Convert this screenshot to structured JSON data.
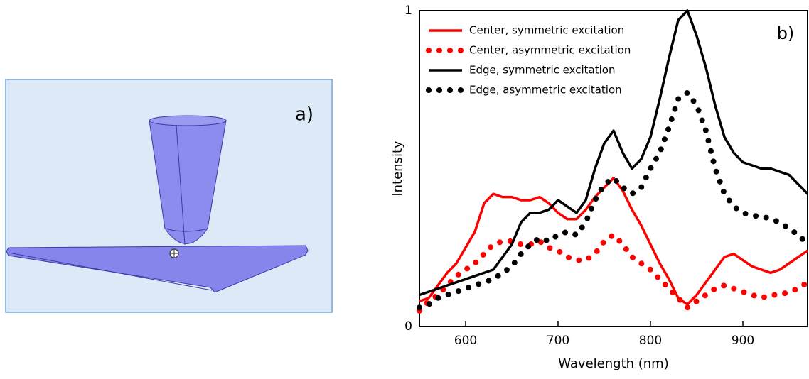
{
  "panel_a": {
    "label": "a)"
  },
  "chart_data": {
    "type": "line",
    "annotation": "b)",
    "xlabel": "Wavelength (nm)",
    "ylabel": "Intensity",
    "xlim": [
      550,
      970
    ],
    "xticks": [
      600,
      700,
      800,
      900
    ],
    "ylim": [
      0,
      1
    ],
    "yticks": [
      0,
      1
    ],
    "legend": "upper left",
    "x": [
      550,
      560,
      570,
      580,
      590,
      600,
      610,
      620,
      630,
      640,
      650,
      660,
      670,
      680,
      690,
      700,
      710,
      720,
      730,
      740,
      750,
      760,
      770,
      780,
      790,
      800,
      810,
      820,
      830,
      840,
      850,
      860,
      870,
      880,
      890,
      900,
      910,
      920,
      930,
      940,
      950,
      960,
      970
    ],
    "series": [
      {
        "name": "Center, symmetric excitation",
        "color": "#ff0000",
        "style": "solid",
        "values": [
          0.08,
          0.09,
          0.13,
          0.17,
          0.2,
          0.25,
          0.3,
          0.39,
          0.42,
          0.41,
          0.41,
          0.4,
          0.4,
          0.41,
          0.39,
          0.36,
          0.34,
          0.34,
          0.37,
          0.41,
          0.44,
          0.47,
          0.43,
          0.37,
          0.32,
          0.26,
          0.2,
          0.15,
          0.09,
          0.07,
          0.1,
          0.14,
          0.18,
          0.22,
          0.23,
          0.21,
          0.19,
          0.18,
          0.17,
          0.18,
          0.2,
          0.22,
          0.24
        ]
      },
      {
        "name": "Center, asymmetric excitation",
        "color": "#ff0000",
        "style": "dotted",
        "values": [
          0.05,
          0.08,
          0.1,
          0.13,
          0.16,
          0.18,
          0.2,
          0.23,
          0.26,
          0.27,
          0.27,
          0.26,
          0.26,
          0.27,
          0.25,
          0.24,
          0.22,
          0.21,
          0.21,
          0.23,
          0.27,
          0.29,
          0.26,
          0.22,
          0.2,
          0.18,
          0.15,
          0.12,
          0.09,
          0.06,
          0.08,
          0.1,
          0.12,
          0.13,
          0.12,
          0.11,
          0.1,
          0.09,
          0.1,
          0.1,
          0.11,
          0.12,
          0.14
        ]
      },
      {
        "name": "Edge, symmetric excitation",
        "color": "#000000",
        "style": "solid",
        "values": [
          0.1,
          0.11,
          0.12,
          0.13,
          0.14,
          0.15,
          0.16,
          0.17,
          0.18,
          0.22,
          0.26,
          0.33,
          0.36,
          0.36,
          0.37,
          0.4,
          0.38,
          0.36,
          0.4,
          0.5,
          0.58,
          0.62,
          0.55,
          0.5,
          0.53,
          0.6,
          0.72,
          0.85,
          0.97,
          1.0,
          0.92,
          0.82,
          0.7,
          0.6,
          0.55,
          0.52,
          0.51,
          0.5,
          0.5,
          0.49,
          0.48,
          0.45,
          0.42
        ]
      },
      {
        "name": "Edge, asymmetric excitation",
        "color": "#000000",
        "style": "dotted",
        "values": [
          0.06,
          0.07,
          0.09,
          0.1,
          0.11,
          0.12,
          0.13,
          0.14,
          0.15,
          0.17,
          0.19,
          0.23,
          0.26,
          0.28,
          0.27,
          0.29,
          0.3,
          0.29,
          0.33,
          0.4,
          0.45,
          0.47,
          0.44,
          0.42,
          0.44,
          0.5,
          0.55,
          0.63,
          0.72,
          0.74,
          0.7,
          0.62,
          0.5,
          0.42,
          0.38,
          0.36,
          0.35,
          0.35,
          0.34,
          0.33,
          0.31,
          0.29,
          0.26
        ]
      }
    ]
  }
}
